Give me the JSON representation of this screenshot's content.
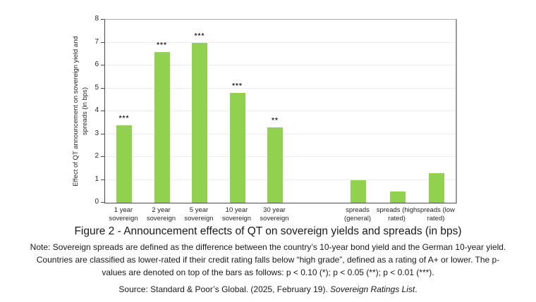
{
  "chart_data": {
    "type": "bar",
    "title": "",
    "xlabel": "",
    "ylabel": "Effect of QT announcement on sovereign yield and spreads (in bps)",
    "ylabel_lines": [
      "Effect of QT announcement on sovereign yield and",
      "spreads (in bps)"
    ],
    "ylim": [
      0,
      8
    ],
    "yticks": [
      0,
      1,
      2,
      3,
      4,
      5,
      6,
      7,
      8
    ],
    "grid": true,
    "legend_position": "none",
    "bar_color": "#92D050",
    "categories": [
      "1 year sovereign",
      "2 year sovereign",
      "5 year sovereign",
      "10 year sovereign",
      "30 year sovereign",
      "spreads (general)",
      "spreads (high rated)",
      "spreads (low rated)"
    ],
    "values": [
      3.4,
      6.6,
      7.0,
      4.8,
      3.3,
      1.0,
      0.5,
      1.3
    ],
    "significance": [
      "***",
      "***",
      "***",
      "***",
      "**",
      "",
      "",
      ""
    ],
    "bars": [
      {
        "label_lines": [
          "1 year",
          "sovereign"
        ],
        "value": 3.4,
        "stars": "***"
      },
      {
        "label_lines": [
          "2 year",
          "sovereign"
        ],
        "value": 6.6,
        "stars": "***"
      },
      {
        "label_lines": [
          "5 year",
          "sovereign"
        ],
        "value": 7.0,
        "stars": "***"
      },
      {
        "label_lines": [
          "10 year",
          "sovereign"
        ],
        "value": 4.8,
        "stars": "***"
      },
      {
        "label_lines": [
          "30 year",
          "sovereign"
        ],
        "value": 3.3,
        "stars": "**"
      },
      {
        "label_lines": [
          "spreads",
          "(general)"
        ],
        "value": 1.0,
        "stars": ""
      },
      {
        "label_lines": [
          "spreads (high",
          "rated)"
        ],
        "value": 0.5,
        "stars": ""
      },
      {
        "label_lines": [
          "spreads (low",
          "rated)"
        ],
        "value": 1.3,
        "stars": ""
      }
    ]
  },
  "caption": "Figure 2 - Announcement effects of QT on sovereign yields and spreads (in bps)",
  "note": {
    "lines": [
      "Note: Sovereign spreads are defined as the difference between the country’s 10-year bond yield and the German 10-year yield.",
      "Countries are classified as lower-rated if their credit rating falls below “high grade”, defined as a rating of A+ or lower. The p-",
      "values are denoted on top of the bars as follows: p < 0.10 (*); p < 0.05 (**); p < 0.01 (***)."
    ]
  },
  "source": {
    "prefix": "Source: Standard & Poor’s Global. (2025, February 19). ",
    "italic": "Sovereign Ratings List",
    "suffix": "."
  }
}
